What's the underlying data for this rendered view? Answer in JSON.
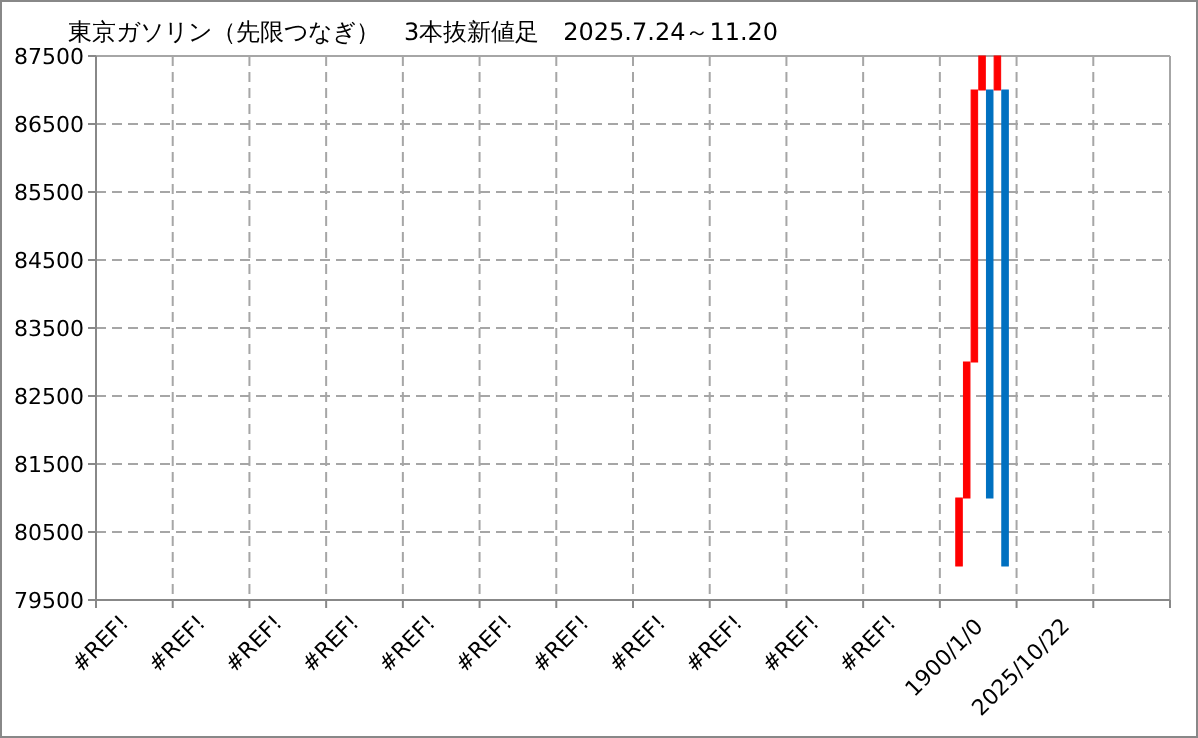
{
  "chart_data": {
    "type": "bar",
    "title": "東京ガソリン（先限つなぎ）　3本抜新値足　2025.7.24～11.20",
    "categories": [
      "#REF!",
      null,
      null,
      null,
      null,
      null,
      null,
      null,
      null,
      null,
      "#REF!",
      null,
      null,
      null,
      null,
      null,
      null,
      null,
      null,
      null,
      "#REF!",
      null,
      null,
      null,
      null,
      null,
      null,
      null,
      null,
      null,
      "#REF!",
      null,
      null,
      null,
      null,
      null,
      null,
      null,
      null,
      null,
      "#REF!",
      null,
      null,
      null,
      null,
      null,
      null,
      null,
      null,
      null,
      "#REF!",
      null,
      null,
      null,
      null,
      null,
      null,
      null,
      null,
      null,
      "#REF!",
      null,
      null,
      null,
      null,
      null,
      null,
      null,
      null,
      null,
      "#REF!",
      null,
      null,
      null,
      null,
      null,
      null,
      null,
      null,
      null,
      "#REF!",
      null,
      null,
      null,
      null,
      null,
      null,
      null,
      null,
      null,
      "#REF!",
      null,
      null,
      null,
      null,
      null,
      null,
      null,
      null,
      null,
      "#REF!",
      null,
      null,
      null,
      null,
      null,
      null,
      null,
      null,
      null,
      "1900/1/0",
      null,
      null,
      null,
      null,
      null,
      null,
      null,
      null,
      null,
      "2025/10/22",
      null,
      null,
      null,
      null,
      null,
      null,
      null,
      null,
      null,
      null,
      null,
      null,
      null,
      null,
      null,
      null,
      null,
      null,
      null
    ],
    "values": [
      null,
      null,
      null,
      null,
      null,
      null,
      null,
      null,
      null,
      null,
      null,
      null,
      null,
      null,
      null,
      null,
      null,
      null,
      null,
      null,
      null,
      null,
      null,
      null,
      null,
      null,
      null,
      null,
      null,
      null,
      null,
      null,
      null,
      null,
      null,
      null,
      null,
      null,
      null,
      null,
      null,
      null,
      null,
      null,
      null,
      null,
      null,
      null,
      null,
      null,
      null,
      null,
      null,
      null,
      null,
      null,
      null,
      null,
      null,
      null,
      null,
      null,
      null,
      null,
      null,
      null,
      null,
      null,
      null,
      null,
      null,
      null,
      null,
      null,
      null,
      null,
      null,
      null,
      null,
      null,
      null,
      null,
      null,
      null,
      null,
      null,
      null,
      null,
      null,
      null,
      null,
      null,
      null,
      null,
      null,
      null,
      null,
      null,
      null,
      null,
      null,
      null,
      null,
      null,
      null,
      null,
      null,
      null,
      null,
      null,
      null,
      null,
      1000,
      2000,
      4000,
      500,
      6000,
      500,
      7000,
      null,
      null,
      null,
      null,
      null,
      null,
      null,
      null,
      null,
      null,
      null,
      null,
      null,
      null,
      null,
      null,
      null,
      null,
      null,
      null,
      null
    ],
    "base": [
      null,
      null,
      null,
      null,
      null,
      null,
      null,
      null,
      null,
      null,
      null,
      null,
      null,
      null,
      null,
      null,
      null,
      null,
      null,
      null,
      null,
      null,
      null,
      null,
      null,
      null,
      null,
      null,
      null,
      null,
      null,
      null,
      null,
      null,
      null,
      null,
      null,
      null,
      null,
      null,
      null,
      null,
      null,
      null,
      null,
      null,
      null,
      null,
      null,
      null,
      null,
      null,
      null,
      null,
      null,
      null,
      null,
      null,
      null,
      null,
      null,
      null,
      null,
      null,
      null,
      null,
      null,
      null,
      null,
      null,
      null,
      null,
      null,
      null,
      null,
      null,
      null,
      null,
      null,
      null,
      null,
      null,
      null,
      null,
      null,
      null,
      null,
      null,
      null,
      null,
      null,
      null,
      null,
      null,
      null,
      null,
      null,
      null,
      null,
      null,
      null,
      null,
      null,
      null,
      null,
      null,
      null,
      null,
      null,
      null,
      null,
      null,
      80000,
      81000,
      83000,
      87000,
      81000,
      87000,
      80000,
      null,
      null,
      null,
      null,
      null,
      null,
      null,
      null,
      null,
      null,
      null,
      null,
      null,
      null,
      null,
      null,
      null,
      null,
      null,
      null,
      null
    ],
    "colors": [
      null,
      null,
      null,
      null,
      null,
      null,
      null,
      null,
      null,
      null,
      null,
      null,
      null,
      null,
      null,
      null,
      null,
      null,
      null,
      null,
      null,
      null,
      null,
      null,
      null,
      null,
      null,
      null,
      null,
      null,
      null,
      null,
      null,
      null,
      null,
      null,
      null,
      null,
      null,
      null,
      null,
      null,
      null,
      null,
      null,
      null,
      null,
      null,
      null,
      null,
      null,
      null,
      null,
      null,
      null,
      null,
      null,
      null,
      null,
      null,
      null,
      null,
      null,
      null,
      null,
      null,
      null,
      null,
      null,
      null,
      null,
      null,
      null,
      null,
      null,
      null,
      null,
      null,
      null,
      null,
      null,
      null,
      null,
      null,
      null,
      null,
      null,
      null,
      null,
      null,
      null,
      null,
      null,
      null,
      null,
      null,
      null,
      null,
      null,
      null,
      null,
      null,
      null,
      null,
      null,
      null,
      null,
      null,
      null,
      null,
      null,
      null,
      "#ff0000",
      "#ff0000",
      "#ff0000",
      "#ff0000",
      "#0070c0",
      "#ff0000",
      "#0070c0",
      null,
      null,
      null,
      null,
      null,
      null,
      null,
      null,
      null,
      null,
      null,
      null,
      null,
      null,
      null,
      null,
      null,
      null,
      null,
      null,
      null
    ],
    "ylim": [
      79500,
      87500
    ],
    "yticks": [
      79500,
      80500,
      81500,
      82500,
      83500,
      84500,
      85500,
      86500,
      87500
    ],
    "grid": true
  }
}
